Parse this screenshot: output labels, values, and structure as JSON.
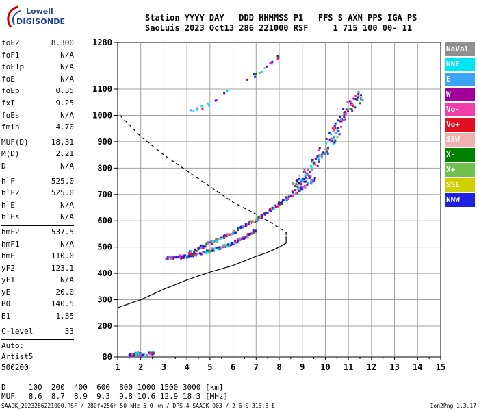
{
  "logo": {
    "line1": "Lowell",
    "line2": "DIGISONDE"
  },
  "header": {
    "line1": "Station YYYY DAY   DDD HHMMSS P1   FFS S AXN PPS IGA PS",
    "line2": "SaoLuis 2023 Oct13 286 221000 RSF     1 715 100 00- 11"
  },
  "params": {
    "group1": [
      {
        "label": "foF2",
        "value": "8.300"
      },
      {
        "label": "foF1",
        "value": "N/A"
      },
      {
        "label": "foF1p",
        "value": "N/A"
      },
      {
        "label": "foE",
        "value": "N/A"
      },
      {
        "label": "foEp",
        "value": "0.35"
      },
      {
        "label": "fxI",
        "value": "9.25"
      },
      {
        "label": "foEs",
        "value": "N/A"
      },
      {
        "label": "fmin",
        "value": "4.70"
      }
    ],
    "group2": [
      {
        "label": "MUF(D)",
        "value": "18.31"
      },
      {
        "label": "M(D)",
        "value": "2.21"
      },
      {
        "label": "D",
        "value": "N/A"
      }
    ],
    "group3": [
      {
        "label": "h`F",
        "value": "525.0"
      },
      {
        "label": "h`F2",
        "value": "525.0"
      },
      {
        "label": "h`E",
        "value": "N/A"
      },
      {
        "label": "h`Es",
        "value": "N/A"
      }
    ],
    "group4": [
      {
        "label": "hmF2",
        "value": "537.5"
      },
      {
        "label": "hmF1",
        "value": "N/A"
      },
      {
        "label": "hmE",
        "value": "110.0"
      },
      {
        "label": "yF2",
        "value": "123.1"
      },
      {
        "label": "yF1",
        "value": "N/A"
      },
      {
        "label": "yE",
        "value": "20.0"
      },
      {
        "label": "B0",
        "value": "140.5"
      },
      {
        "label": "B1",
        "value": "1.35"
      }
    ],
    "group5": [
      {
        "label": "C-level",
        "value": "33"
      }
    ],
    "extra": [
      "Auto:",
      "Artist5",
      "500200"
    ]
  },
  "legend": [
    {
      "label": "NoVal",
      "color": "#909090"
    },
    {
      "label": "NNE",
      "color": "#00e6f0"
    },
    {
      "label": "E",
      "color": "#3ba3f5"
    },
    {
      "label": "W",
      "color": "#a0009a"
    },
    {
      "label": "Vo-",
      "color": "#f040a8"
    },
    {
      "label": "Vo+",
      "color": "#e01020"
    },
    {
      "label": "SSW",
      "color": "#f0b0b0"
    },
    {
      "label": "X-",
      "color": "#008000"
    },
    {
      "label": "X+",
      "color": "#70c050"
    },
    {
      "label": "SSE",
      "color": "#d0d000"
    },
    {
      "label": "NNW",
      "color": "#2020e0"
    }
  ],
  "footer": {
    "d_line": "D     100  200  400  600  800 1000 1500 3000 [km]",
    "muf_line": "MUF   8.6  8.7  8.9  9.3  9.8 10.6 12.9 18.3 [MHz]",
    "file_info": "SAAOK_2023286221000.RSF / 280fx256h 50 kHz 5.0 km / DPS-4 SAAOK 903 / 2.6 S 315.8 E",
    "version": "Ion2Png 1.3.17"
  },
  "chart_data": {
    "type": "scatter",
    "x_ticks": [
      "1",
      "2",
      "3",
      "4",
      "5",
      "6",
      "7",
      "8",
      "9",
      "10",
      "11",
      "12",
      "13",
      "14",
      "15"
    ],
    "y_ticks": [
      "80",
      "200",
      "300",
      "400",
      "500",
      "600",
      "700",
      "800",
      "900",
      "1000",
      "1100",
      "1280"
    ],
    "xlim": [
      1,
      15
    ],
    "ylim": [
      80,
      1280
    ],
    "grid": true,
    "y_scale": "nonlinear (80 and 1280 at ends, 100 km steps between 200 and 1100)",
    "clusters": [
      {
        "name": "low-frequency traces",
        "points": [
          [
            3.0,
            458
          ],
          [
            3.5,
            465
          ],
          [
            4.0,
            470
          ],
          [
            4.5,
            478
          ],
          [
            5.0,
            490
          ],
          [
            5.5,
            505
          ],
          [
            6.0,
            520
          ],
          [
            6.5,
            540
          ],
          [
            7.0,
            570
          ]
        ]
      },
      {
        "name": "F2 O-trace",
        "points": [
          [
            4.0,
            480
          ],
          [
            4.5,
            500
          ],
          [
            5.0,
            520
          ],
          [
            5.5,
            540
          ],
          [
            6.0,
            560
          ],
          [
            6.5,
            585
          ],
          [
            7.0,
            610
          ],
          [
            7.5,
            640
          ],
          [
            8.0,
            670
          ],
          [
            8.5,
            700
          ],
          [
            9.0,
            730
          ],
          [
            9.5,
            760
          ]
        ]
      },
      {
        "name": "spread F",
        "points": [
          [
            8.5,
            720
          ],
          [
            9.0,
            760
          ],
          [
            9.5,
            820
          ],
          [
            10.0,
            880
          ],
          [
            10.5,
            960
          ],
          [
            11.0,
            1040
          ],
          [
            11.5,
            1090
          ]
        ]
      },
      {
        "name": "multiple echoes",
        "points": [
          [
            4.0,
            1020
          ],
          [
            4.5,
            1030
          ],
          [
            5.0,
            1050
          ],
          [
            6.5,
            1140
          ],
          [
            7.0,
            1160
          ],
          [
            7.5,
            1200
          ],
          [
            7.8,
            1220
          ],
          [
            8.0,
            1240
          ]
        ]
      },
      {
        "name": "low-height echoes",
        "points": [
          [
            1.5,
            90
          ],
          [
            1.8,
            95
          ],
          [
            2.0,
            92
          ],
          [
            2.5,
            98
          ]
        ]
      }
    ],
    "profile_curve": [
      [
        1.0,
        270
      ],
      [
        2.0,
        300
      ],
      [
        3.0,
        340
      ],
      [
        4.0,
        375
      ],
      [
        5.0,
        405
      ],
      [
        6.0,
        430
      ],
      [
        7.0,
        465
      ],
      [
        7.5,
        480
      ],
      [
        8.0,
        500
      ],
      [
        8.3,
        515
      ],
      [
        8.3,
        540
      ]
    ],
    "virtual_height_curve": [
      [
        1.1,
        1000
      ],
      [
        2.0,
        920
      ],
      [
        3.0,
        850
      ],
      [
        4.0,
        790
      ],
      [
        5.0,
        730
      ],
      [
        6.0,
        670
      ],
      [
        7.0,
        625
      ],
      [
        7.8,
        585
      ],
      [
        8.3,
        555
      ],
      [
        8.3,
        540
      ]
    ]
  }
}
